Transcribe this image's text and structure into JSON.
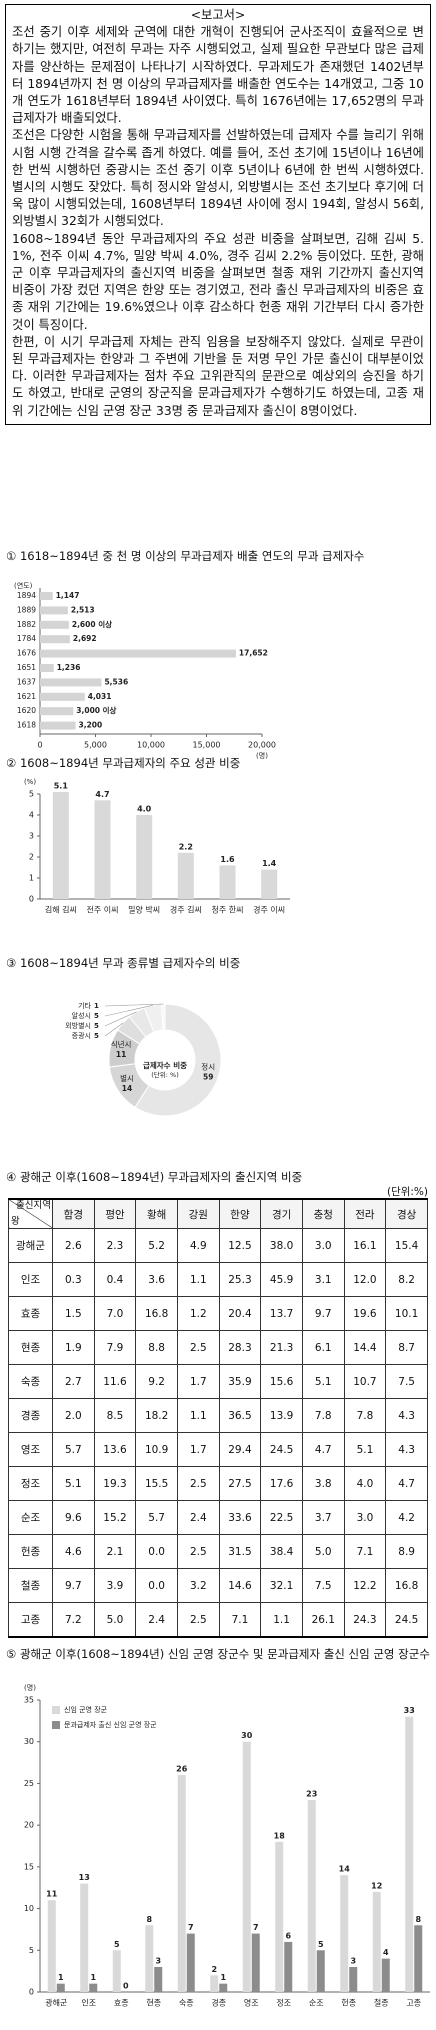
{
  "report": {
    "title": "<보고서>",
    "paragraphs": [
      "조선 중기 이후 세제와 군역에 대한 개혁이 진행되어 군사조직이 효율적으로 변하기는 했지만, 여전히 무과는 자주 시행되었고, 실제 필요한 무관보다 많은 급제자를 양산하는 문제점이 나타나기 시작하였다. 무과제도가 존재했던 1402년부터 1894년까지 천 명 이상의 무과급제자를 배출한 연도수는 14개였고, 그중 10개 연도가 1618년부터 1894년 사이였다. 특히 1676년에는 17,652명의 무과급제자가 배출되었다.",
      "조선은 다양한 시험을 통해 무과급제자를 선발하였는데 급제자 수를 늘리기 위해 시험 시행 간격을 갈수록 좁게 하였다. 예를 들어, 조선 초기에 15년이나 16년에 한 번씩 시행하던 중광시는 조선 중기 이후 5년이나 6년에 한 번씩 시행하였다. 별시의 시행도 잦았다. 특히 정시와 알성시, 외방별시는 조선 초기보다 후기에 더욱 많이 시행되었는데, 1608년부터 1894년 사이에 정시 194회, 알성시 56회, 외방별시 32회가 시행되었다.",
      "1608~1894년 동안 무과급제자의 주요 성관 비중을 살펴보면, 김해 김씨 5.1%, 전주 이씨 4.7%, 밀양 박씨 4.0%, 경주 김씨 2.2% 등이었다. 또한, 광해군 이후 무과급제자의 출신지역 비중을 살펴보면 철종 재위 기간까지 출신지역 비중이 가장 컸던 지역은 한양 또는 경기였고, 전라 출신 무과급제자의 비중은 효종 재위 기간에는 19.6%였으나 이후 감소하다 헌종 재위 기간부터 다시 증가한 것이 특징이다.",
      "한편, 이 시기 무과급제 자체는 관직 임용을 보장해주지 않았다. 실제로 무관이 된 무과급제자는 한양과 그 주변에 기반을 둔 저명 무인 가문 출신이 대부분이었다. 이러한 무과급제자는 점차 주요 고위관직의 문관으로 예상외의 승진을 하기도 하였고, 반대로 군영의 장군직을 문과급제자가 수행하기도 하였는데, 고종 재위 기간에는 신임 군영 장군 33명 중 문과급제자 출신이 8명이었다."
    ]
  },
  "chart_data": [
    {
      "type": "bar",
      "orientation": "horizontal",
      "title": "① 1618~1894년 중 천 명 이상의 무과급제자 배출 연도의 무과 급제자수",
      "y_label": "(연도)",
      "x_label": "(명)",
      "categories": [
        "1894",
        "1889",
        "1882",
        "1784",
        "1676",
        "1651",
        "1637",
        "1621",
        "1620",
        "1618"
      ],
      "values": [
        1147,
        2513,
        2600,
        2692,
        17652,
        1236,
        5536,
        4031,
        3000,
        3200
      ],
      "value_labels": [
        "1,147",
        "2,513",
        "2,600 이상",
        "2,692",
        "17,652",
        "1,236",
        "5,536",
        "4,031",
        "3,000 이상",
        "3,200"
      ],
      "color": "#d4d4d4",
      "xlim": [
        0,
        20000
      ],
      "xticks": [
        0,
        {
          "value": 5000,
          "label": "5,000"
        },
        {
          "value": 10000,
          "label": "10,000"
        },
        {
          "value": 15000,
          "label": "15,000"
        },
        {
          "value": 20000,
          "label": "20,000"
        }
      ]
    },
    {
      "type": "bar",
      "title": "② 1608~1894년 무과급제자의 주요 성관 비중",
      "y_label": "(%)",
      "categories": [
        "김해 김씨",
        "전주 이씨",
        "밀양 박씨",
        "경주 김씨",
        "청주 한씨",
        "경주 이씨"
      ],
      "values": [
        5.1,
        4.7,
        4.0,
        2.2,
        1.6,
        1.4
      ],
      "value_labels": [
        "5.1",
        "4.7",
        "4.0",
        "2.2",
        "1.6",
        "1.4"
      ],
      "color": "#d9d9d9",
      "ylim": [
        0,
        5
      ],
      "yticks": [
        0,
        1,
        2,
        3,
        4,
        5
      ]
    },
    {
      "type": "donut",
      "title": "③ 1608~1894년 무과 종류별 급제자수의 비중",
      "center_title": "급제자수 비중",
      "center_subtitle": "(단위: %)",
      "categories": [
        "정시",
        "별시",
        "식년시",
        "증광시",
        "외방별시",
        "알성시",
        "기타"
      ],
      "values": [
        59,
        14,
        11,
        5,
        5,
        5,
        1
      ],
      "colors": [
        "#e6e6e6",
        "#d6d6d6",
        "#cdcdcd",
        "#dedede",
        "#e8e8e8",
        "#f0f0f0",
        "#f8f8f8"
      ]
    },
    {
      "type": "bar",
      "title": "⑤ 광해군 이후(1608~1894년) 신임 군영 장군수 및 문과급제자 출신 신임 군영 장군수",
      "y_label": "(명)",
      "categories": [
        "광해군",
        "인조",
        "효종",
        "현종",
        "숙종",
        "경종",
        "영조",
        "정조",
        "순조",
        "헌종",
        "철종",
        "고종"
      ],
      "series": [
        {
          "name": "신임 군영 장군",
          "color": "#d9d9d9",
          "values": [
            11,
            13,
            5,
            8,
            26,
            2,
            30,
            18,
            23,
            14,
            12,
            33
          ]
        },
        {
          "name": "문과급제자 출신 신임 군영 장군",
          "color": "#8c8c8c",
          "values": [
            1,
            1,
            0,
            3,
            7,
            1,
            7,
            6,
            5,
            3,
            4,
            8
          ]
        }
      ],
      "ylim": [
        0,
        35
      ],
      "yticks": [
        0,
        5,
        10,
        15,
        20,
        25,
        30,
        35
      ],
      "legend": "top-left"
    }
  ],
  "table": {
    "title": "④ 광해군 이후(1608~1894년) 무과급제자의 출신지역 비중",
    "unit": "(단위:%)",
    "corner_top": "출신지역",
    "corner_bottom": "왕",
    "columns": [
      "함경",
      "평안",
      "황해",
      "강원",
      "한양",
      "경기",
      "충청",
      "전라",
      "경상"
    ],
    "rows": [
      [
        "광해군",
        "2.6",
        "2.3",
        "5.2",
        "4.9",
        "12.5",
        "38.0",
        "3.0",
        "16.1",
        "15.4"
      ],
      [
        "인조",
        "0.3",
        "0.4",
        "3.6",
        "1.1",
        "25.3",
        "45.9",
        "3.1",
        "12.0",
        "8.2"
      ],
      [
        "효종",
        "1.5",
        "7.0",
        "16.8",
        "1.2",
        "20.4",
        "13.7",
        "9.7",
        "19.6",
        "10.1"
      ],
      [
        "현종",
        "1.9",
        "7.9",
        "8.8",
        "2.5",
        "28.3",
        "21.3",
        "6.1",
        "14.4",
        "8.7"
      ],
      [
        "숙종",
        "2.7",
        "11.6",
        "9.2",
        "1.7",
        "35.9",
        "15.6",
        "5.1",
        "10.7",
        "7.5"
      ],
      [
        "경종",
        "2.0",
        "8.5",
        "18.2",
        "1.1",
        "36.5",
        "13.9",
        "7.8",
        "7.8",
        "4.3"
      ],
      [
        "영조",
        "5.7",
        "13.6",
        "10.9",
        "1.7",
        "29.4",
        "24.5",
        "4.7",
        "5.1",
        "4.3"
      ],
      [
        "정조",
        "5.1",
        "19.3",
        "15.5",
        "2.5",
        "27.5",
        "17.6",
        "3.8",
        "4.0",
        "4.7"
      ],
      [
        "순조",
        "9.6",
        "15.2",
        "5.7",
        "2.4",
        "33.6",
        "22.5",
        "3.7",
        "3.0",
        "4.2"
      ],
      [
        "헌종",
        "4.6",
        "2.1",
        "0.0",
        "2.5",
        "31.5",
        "38.4",
        "5.0",
        "7.1",
        "8.9"
      ],
      [
        "철종",
        "9.7",
        "3.9",
        "0.0",
        "3.2",
        "14.6",
        "32.1",
        "7.5",
        "12.2",
        "16.8"
      ],
      [
        "고종",
        "7.2",
        "5.0",
        "2.4",
        "2.5",
        "7.1",
        "1.1",
        "26.1",
        "24.3",
        "24.5"
      ]
    ]
  }
}
